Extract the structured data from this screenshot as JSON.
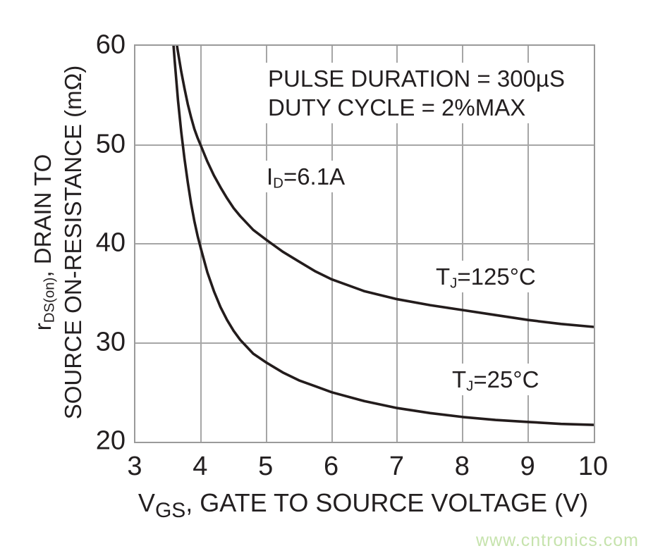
{
  "watermark": {
    "text": "www.cntronics.com",
    "color": "#c6e3ad"
  },
  "colors": {
    "curve": "#231c1c",
    "grid": "#a6a6a6",
    "border": "#9a9a9a",
    "text": "#231f20"
  },
  "annotations": {
    "pulse_duration": "PULSE DURATION = 300µS",
    "duty_cycle": "DUTY CYCLE = 2%MAX",
    "drain_current": {
      "pre": "I",
      "sub": "D",
      "post": "=6.1A"
    }
  },
  "chart_data": {
    "type": "line",
    "title": "",
    "grid": true,
    "legend_position": "inline-labels",
    "x_axis": {
      "label_pre": "V",
      "label_sub": "GS",
      "label_post": ", GATE TO SOURCE VOLTAGE (V)",
      "ticks": [
        3,
        4,
        5,
        6,
        7,
        8,
        9,
        10
      ],
      "range": [
        3,
        10
      ]
    },
    "y_axis": {
      "label_line1_pre": "r",
      "label_line1_sub": "DS(on)",
      "label_line1_post": ", DRAIN TO",
      "label_line2": "SOURCE ON-RESISTANCE (mΩ)",
      "ticks": [
        60,
        50,
        40,
        30,
        20
      ],
      "range": [
        20,
        60
      ]
    },
    "series": [
      {
        "key": "tj125",
        "label_pre": "T",
        "label_sub": "J",
        "label_post": "=125°C",
        "points": [
          [
            3.6,
            62
          ],
          [
            3.64,
            59.8
          ],
          [
            3.7,
            57.4
          ],
          [
            3.75,
            55.7
          ],
          [
            3.8,
            54.1
          ],
          [
            3.85,
            52.8
          ],
          [
            3.9,
            51.6
          ],
          [
            3.95,
            50.7
          ],
          [
            4.0,
            49.9
          ],
          [
            4.1,
            48.3
          ],
          [
            4.2,
            46.9
          ],
          [
            4.3,
            45.7
          ],
          [
            4.4,
            44.6
          ],
          [
            4.5,
            43.6
          ],
          [
            4.6,
            42.8
          ],
          [
            4.8,
            41.4
          ],
          [
            5.0,
            40.4
          ],
          [
            5.25,
            39.2
          ],
          [
            5.5,
            38.2
          ],
          [
            5.75,
            37.2
          ],
          [
            6.0,
            36.4
          ],
          [
            6.5,
            35.2
          ],
          [
            7.0,
            34.4
          ],
          [
            7.5,
            33.8
          ],
          [
            8.0,
            33.3
          ],
          [
            8.5,
            32.8
          ],
          [
            9.0,
            32.3
          ],
          [
            9.5,
            31.9
          ],
          [
            10.0,
            31.6
          ]
        ]
      },
      {
        "key": "tj25",
        "label_pre": "T",
        "label_sub": "J",
        "label_post": "=25°C",
        "points": [
          [
            3.56,
            62
          ],
          [
            3.6,
            58.5
          ],
          [
            3.65,
            54.5
          ],
          [
            3.7,
            51.3
          ],
          [
            3.75,
            48.6
          ],
          [
            3.8,
            46.2
          ],
          [
            3.85,
            44.1
          ],
          [
            3.9,
            42.3
          ],
          [
            3.95,
            40.8
          ],
          [
            4.0,
            39.5
          ],
          [
            4.1,
            37.1
          ],
          [
            4.2,
            35.2
          ],
          [
            4.3,
            33.6
          ],
          [
            4.4,
            32.3
          ],
          [
            4.5,
            31.2
          ],
          [
            4.6,
            30.3
          ],
          [
            4.8,
            28.9
          ],
          [
            5.0,
            28.0
          ],
          [
            5.25,
            27.0
          ],
          [
            5.5,
            26.2
          ],
          [
            5.75,
            25.6
          ],
          [
            6.0,
            25.0
          ],
          [
            6.5,
            24.1
          ],
          [
            7.0,
            23.4
          ],
          [
            7.5,
            22.9
          ],
          [
            8.0,
            22.5
          ],
          [
            8.5,
            22.2
          ],
          [
            9.0,
            22.0
          ],
          [
            9.5,
            21.8
          ],
          [
            10.0,
            21.7
          ]
        ]
      }
    ]
  }
}
